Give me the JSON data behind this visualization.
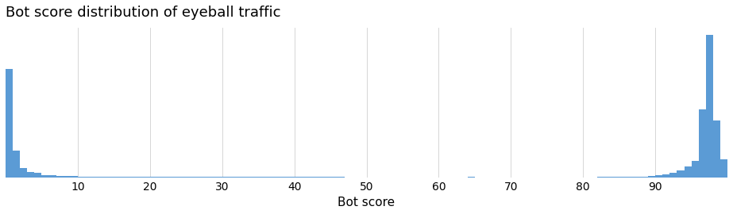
{
  "title": "Bot score distribution of eyeball traffic",
  "xlabel": "Bot score",
  "ylabel": "",
  "bar_color": "#5B9BD5",
  "background_color": "#ffffff",
  "grid_color": "#d0d0d0",
  "title_fontsize": 13,
  "label_fontsize": 11,
  "tick_fontsize": 10,
  "xlim": [
    0,
    100
  ],
  "xticks": [
    10,
    20,
    30,
    40,
    50,
    60,
    70,
    80,
    90
  ],
  "bins": 100,
  "bin_heights": [
    7200,
    1800,
    600,
    350,
    280,
    150,
    120,
    90,
    80,
    70,
    60,
    55,
    50,
    48,
    45,
    42,
    40,
    38,
    36,
    35,
    33,
    32,
    31,
    30,
    29,
    28,
    27,
    26,
    50,
    25,
    24,
    23,
    22,
    21,
    20,
    19,
    18,
    17,
    16,
    15,
    14,
    13,
    12,
    11,
    10,
    9,
    8,
    7,
    6,
    5,
    4,
    4,
    3,
    3,
    3,
    3,
    2,
    2,
    2,
    2,
    2,
    2,
    2,
    2,
    10,
    3,
    2,
    2,
    2,
    2,
    2,
    2,
    2,
    2,
    2,
    2,
    2,
    2,
    2,
    2,
    5,
    5,
    8,
    10,
    15,
    20,
    30,
    45,
    60,
    90,
    130,
    200,
    300,
    450,
    700,
    1100,
    4500,
    9500,
    3800,
    1200
  ]
}
